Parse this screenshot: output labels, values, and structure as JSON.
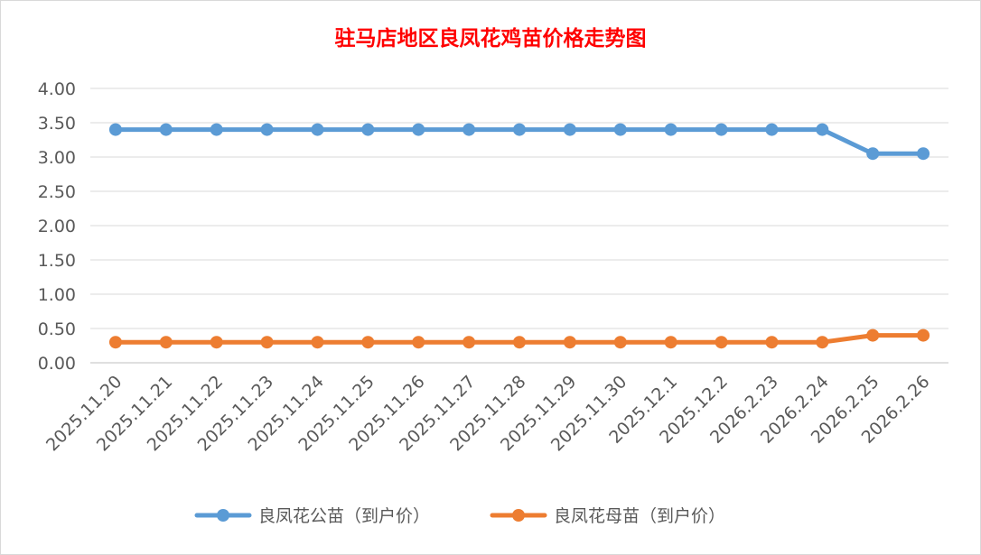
{
  "chart_data": {
    "type": "line",
    "title": "驻马店地区良凤花鸡苗价格走势图",
    "categories": [
      "2025.11.20",
      "2025.11.21",
      "2025.11.22",
      "2025.11.23",
      "2025.11.24",
      "2025.11.25",
      "2025.11.26",
      "2025.11.27",
      "2025.11.28",
      "2025.11.29",
      "2025.11.30",
      "2025.12.1",
      "2025.12.2",
      "2026.2.23",
      "2026.2.24",
      "2026.2.25",
      "2026.2.26"
    ],
    "series": [
      {
        "name": "良凤花公苗（到户价）",
        "color": "#5b9bd5",
        "values": [
          3.4,
          3.4,
          3.4,
          3.4,
          3.4,
          3.4,
          3.4,
          3.4,
          3.4,
          3.4,
          3.4,
          3.4,
          3.4,
          3.4,
          3.4,
          3.05,
          3.05
        ]
      },
      {
        "name": "良凤花母苗（到户价）",
        "color": "#ed7d31",
        "values": [
          0.3,
          0.3,
          0.3,
          0.3,
          0.3,
          0.3,
          0.3,
          0.3,
          0.3,
          0.3,
          0.3,
          0.3,
          0.3,
          0.3,
          0.3,
          0.4,
          0.4
        ]
      }
    ],
    "yticks": [
      "0.00",
      "0.50",
      "1.00",
      "1.50",
      "2.00",
      "2.50",
      "3.00",
      "3.50",
      "4.00"
    ],
    "ylim": [
      0,
      4
    ],
    "grid": true,
    "legend": "bottom",
    "xlabel": "",
    "ylabel": ""
  }
}
